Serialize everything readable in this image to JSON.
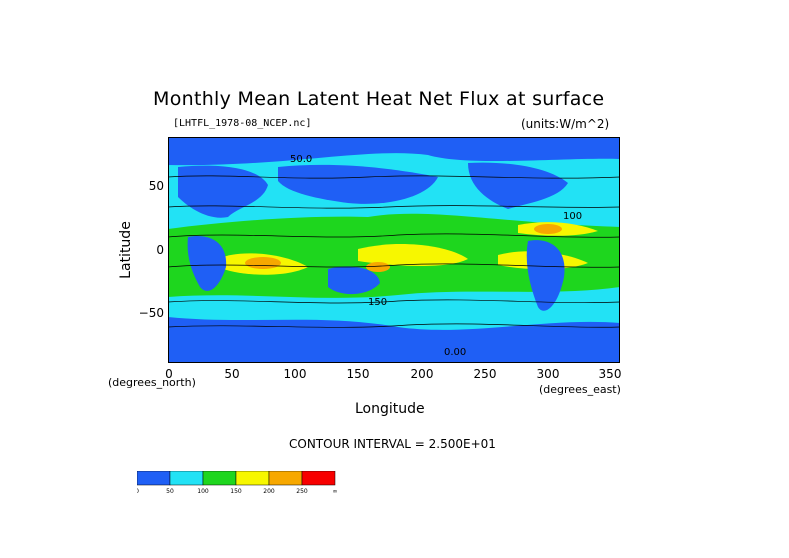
{
  "title": "Monthly Mean Latent Heat Net Flux at surface",
  "file_label": "[LHTFL_1978-08_NCEP.nc]",
  "units_label": "(units:W/m^2)",
  "x_axis": {
    "label": "Longitude",
    "unit": "(degrees_east)",
    "ticks": [
      "0",
      "50",
      "100",
      "150",
      "200",
      "250",
      "300",
      "350"
    ],
    "range": [
      0,
      357.5
    ]
  },
  "y_axis": {
    "label": "Latitude",
    "unit": "(degrees_north)",
    "ticks": [
      "50",
      "0",
      "−50"
    ],
    "range": [
      -90,
      90
    ]
  },
  "contour_interval": "CONTOUR INTERVAL = 2.500E+01",
  "contour_labels": [
    "50.0",
    "100",
    "150",
    "0.00"
  ],
  "colorbar": {
    "labels": [
      "0",
      "50",
      "100",
      "150",
      "200",
      "250",
      "∞"
    ],
    "colors": [
      "#1f5ff5",
      "#22e2f5",
      "#1ed61e",
      "#f7f700",
      "#f7a800",
      "#f70000"
    ]
  },
  "chart_data": {
    "type": "heatmap",
    "title": "Monthly Mean Latent Heat Net Flux at surface",
    "xlabel": "Longitude",
    "ylabel": "Latitude",
    "xlim": [
      0,
      357.5
    ],
    "ylim": [
      -90,
      90
    ],
    "levels": [
      0,
      50,
      100,
      150,
      200,
      250
    ],
    "contour_interval": 25
  },
  "colors": {
    "land": "#1f5ff5",
    "ocean_low": "#22e2f5",
    "ocean_mid": "#1ed61e",
    "ocean_high": "#f7f700",
    "ocean_peak": "#f7a800",
    "max": "#f70000"
  }
}
